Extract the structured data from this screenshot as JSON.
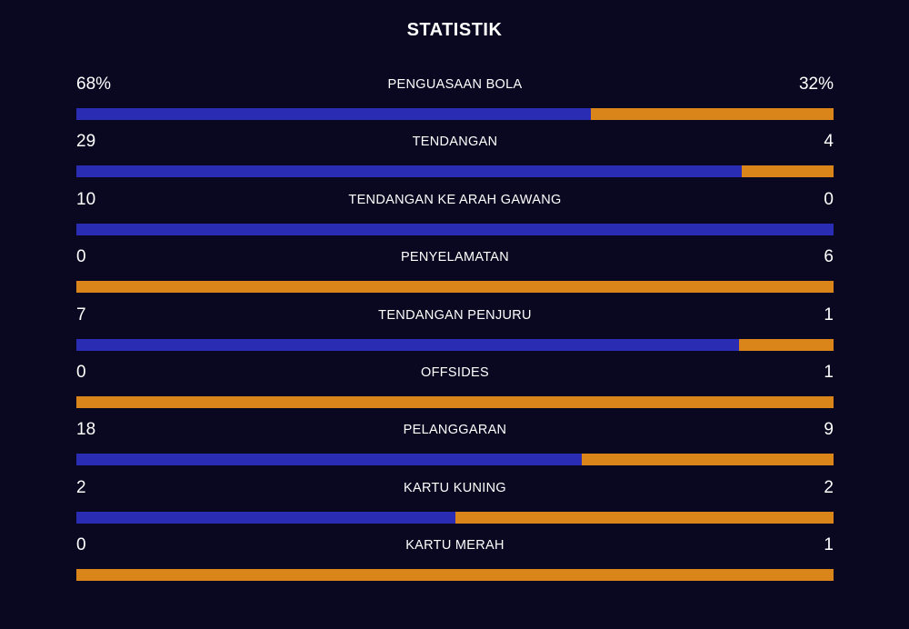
{
  "title": "STATISTIK",
  "colors": {
    "background": "#0a0720",
    "home": "#2a2cb4",
    "away": "#d9851a"
  },
  "stats": [
    {
      "label": "PENGUASAAN BOLA",
      "home": "68%",
      "away": "32%",
      "home_share": 0.68
    },
    {
      "label": "TENDANGAN",
      "home": "29",
      "away": "4",
      "home_share": 0.879
    },
    {
      "label": "TENDANGAN KE ARAH GAWANG",
      "home": "10",
      "away": "0",
      "home_share": 1.0
    },
    {
      "label": "PENYELAMATAN",
      "home": "0",
      "away": "6",
      "home_share": 0.0
    },
    {
      "label": "TENDANGAN PENJURU",
      "home": "7",
      "away": "1",
      "home_share": 0.875
    },
    {
      "label": "OFFSIDES",
      "home": "0",
      "away": "1",
      "home_share": 0.0
    },
    {
      "label": "PELANGGARAN",
      "home": "18",
      "away": "9",
      "home_share": 0.667
    },
    {
      "label": "KARTU KUNING",
      "home": "2",
      "away": "2",
      "home_share": 0.5
    },
    {
      "label": "KARTU MERAH",
      "home": "0",
      "away": "1",
      "home_share": 0.0
    }
  ]
}
